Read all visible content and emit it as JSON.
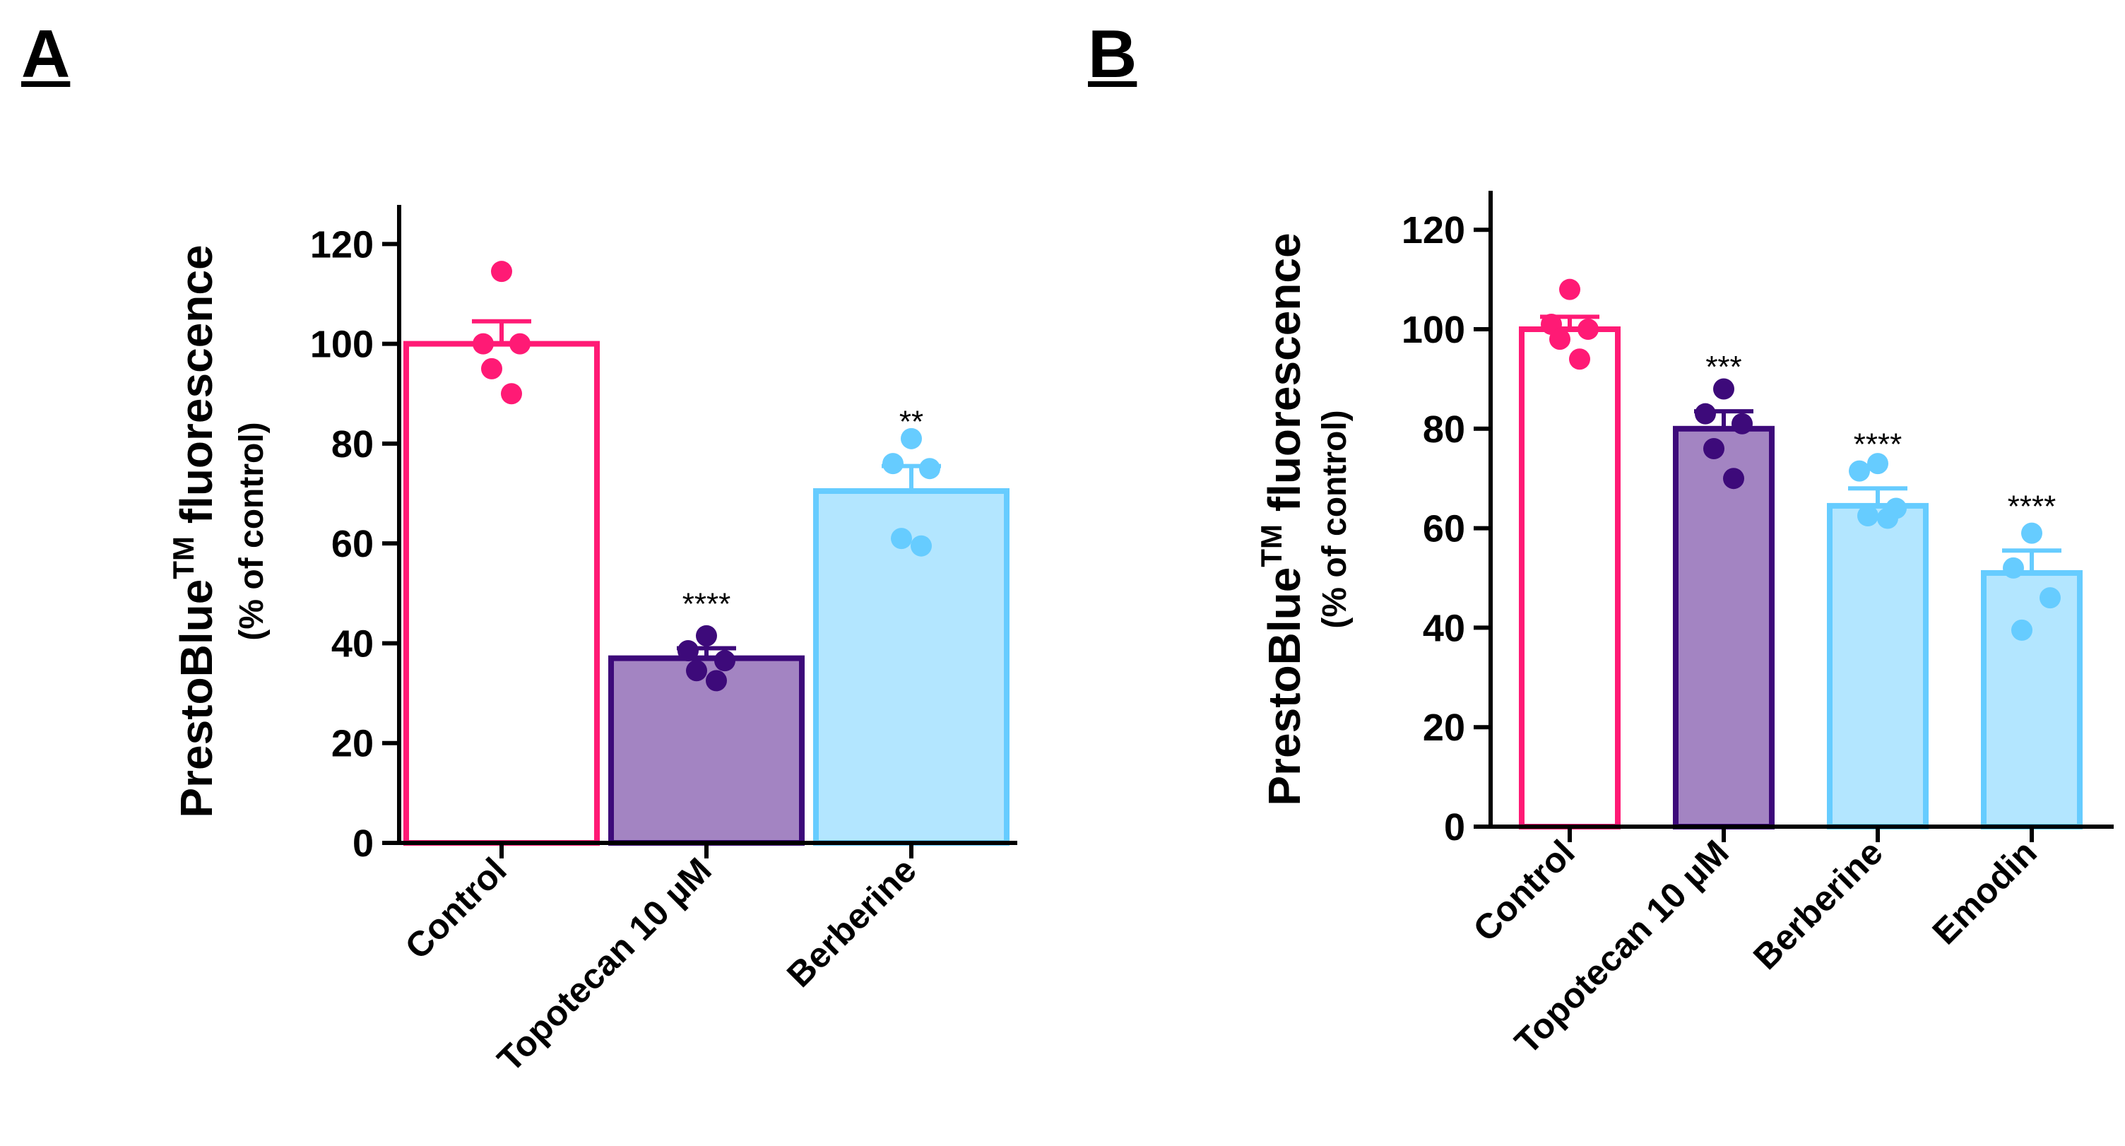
{
  "figure": {
    "panel_labels": [
      "A",
      "B"
    ]
  },
  "colors": {
    "control": "#ff1a75",
    "topotecan_edge": "#3d0a7a",
    "topotecan_fill": "#a384c2",
    "topotecan_dot": "#3d0a7a",
    "compound_edge": "#66ccff",
    "compound_fill": "#b3e6ff",
    "compound_dot": "#66ccff"
  },
  "chart_data": [
    {
      "panel": "A",
      "type": "bar",
      "title": "",
      "ylabel_main": "PrestoBlue",
      "ylabel_sup": "TM",
      "ylabel_tail": " fluorescence",
      "ylabel_sub": "(% of control)",
      "xlabel": "",
      "ylim": [
        0,
        125
      ],
      "yticks": [
        0,
        20,
        40,
        60,
        80,
        100,
        120
      ],
      "categories": [
        "Control",
        "Topotecan 10 µM",
        "Berberine"
      ],
      "values": [
        100,
        37,
        70.5
      ],
      "sem": [
        4.5,
        2.0,
        5.0
      ],
      "significance": [
        "",
        "****",
        "**"
      ],
      "points": [
        [
          114.5,
          100,
          100,
          95,
          90
        ],
        [
          41.5,
          38.5,
          36.5,
          34.5,
          32.5
        ],
        [
          81,
          76,
          75,
          61,
          59.5
        ]
      ],
      "grid": false,
      "legend": "none"
    },
    {
      "panel": "B",
      "type": "bar",
      "title": "",
      "ylabel_main": "PrestoBlue",
      "ylabel_sup": "TM",
      "ylabel_tail": " fluorescence",
      "ylabel_sub": "(% of control)",
      "xlabel": "",
      "ylim": [
        0,
        125
      ],
      "yticks": [
        0,
        20,
        40,
        60,
        80,
        100,
        120
      ],
      "categories": [
        "Control",
        "Topotecan 10 µM",
        "Berberine",
        "Emodin"
      ],
      "values": [
        100,
        80,
        64.5,
        51
      ],
      "sem": [
        2.5,
        3.5,
        3.5,
        4.5
      ],
      "significance": [
        "",
        "***",
        "****",
        "****"
      ],
      "points": [
        [
          108,
          101,
          100,
          98,
          94
        ],
        [
          88,
          83,
          81,
          76,
          70
        ],
        [
          73,
          71.5,
          64,
          62.5,
          62
        ],
        [
          59,
          52,
          46,
          39.5
        ]
      ],
      "grid": false,
      "legend": "none"
    }
  ]
}
